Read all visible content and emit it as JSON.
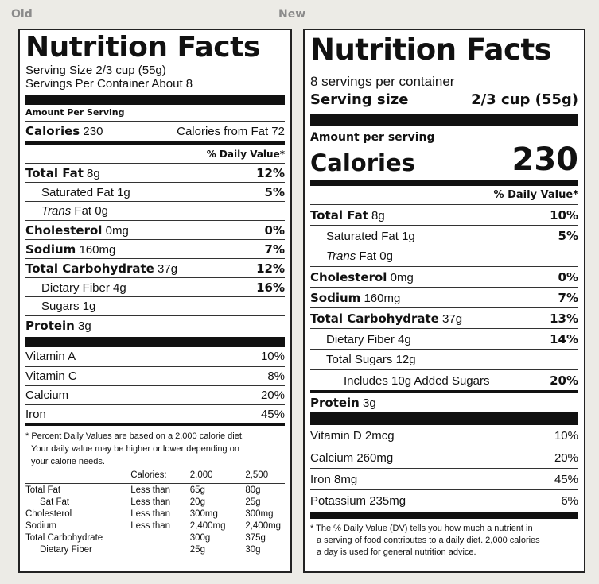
{
  "captions": {
    "old": "Old",
    "new": "New"
  },
  "old": {
    "title": "Nutrition Facts",
    "serving_size": "Serving Size 2/3 cup (55g)",
    "servings_per": "Servings Per Container About 8",
    "amount_per_serving": "Amount Per Serving",
    "calories_label": "Calories",
    "calories_value": "230",
    "calories_from_fat": "Calories from Fat 72",
    "daily_value_header": "% Daily Value*",
    "nutrients": [
      {
        "name": "Total Fat",
        "amount": "8g",
        "dv": "12%"
      },
      {
        "name": "Saturated Fat",
        "amount": "1g",
        "dv": "5%"
      },
      {
        "name": "Trans",
        "amount": "Fat 0g",
        "dv": ""
      },
      {
        "name": "Cholesterol",
        "amount": "0mg",
        "dv": "0%"
      },
      {
        "name": "Sodium",
        "amount": "160mg",
        "dv": "7%"
      },
      {
        "name": "Total Carbohydrate",
        "amount": "37g",
        "dv": "12%"
      },
      {
        "name": "Dietary Fiber",
        "amount": "4g",
        "dv": "16%"
      },
      {
        "name": "Sugars",
        "amount": "1g",
        "dv": ""
      },
      {
        "name": "Protein",
        "amount": "3g",
        "dv": ""
      }
    ],
    "vitamins": [
      {
        "name": "Vitamin A",
        "dv": "10%"
      },
      {
        "name": "Vitamin C",
        "dv": "8%"
      },
      {
        "name": "Calcium",
        "dv": "20%"
      },
      {
        "name": "Iron",
        "dv": "45%"
      }
    ],
    "footnote": [
      "* Percent Daily Values are based on a 2,000 calorie diet.",
      "Your daily value may be higher or lower depending on",
      "your calorie needs."
    ],
    "dv_table": {
      "header": [
        "",
        "Calories:",
        "2,000",
        "2,500"
      ],
      "rows": [
        [
          "Total Fat",
          "Less than",
          "65g",
          "80g"
        ],
        [
          "Sat Fat",
          "Less than",
          "20g",
          "25g"
        ],
        [
          "Cholesterol",
          "Less than",
          "300mg",
          "300mg"
        ],
        [
          "Sodium",
          "Less than",
          "2,400mg",
          "2,400mg"
        ],
        [
          "Total Carbohydrate",
          "",
          "300g",
          "375g"
        ],
        [
          "Dietary Fiber",
          "",
          "25g",
          "30g"
        ]
      ]
    }
  },
  "new": {
    "title": "Nutrition Facts",
    "servings_per": "8 servings per container",
    "serving_size_label": "Serving size",
    "serving_size_value": "2/3 cup (55g)",
    "amount_per_serving": "Amount per serving",
    "calories_label": "Calories",
    "calories_value": "230",
    "daily_value_header": "% Daily Value*",
    "nutrients": [
      {
        "name": "Total Fat",
        "amount": "8g",
        "dv": "10%"
      },
      {
        "name": "Saturated Fat",
        "amount": "1g",
        "dv": "5%"
      },
      {
        "name": "Trans",
        "amount": "Fat 0g",
        "dv": ""
      },
      {
        "name": "Cholesterol",
        "amount": "0mg",
        "dv": "0%"
      },
      {
        "name": "Sodium",
        "amount": "160mg",
        "dv": "7%"
      },
      {
        "name": "Total Carbohydrate",
        "amount": "37g",
        "dv": "13%"
      },
      {
        "name": "Dietary Fiber",
        "amount": "4g",
        "dv": "14%"
      },
      {
        "name": "Total Sugars",
        "amount": "12g",
        "dv": ""
      },
      {
        "name": "Includes 10g Added Sugars",
        "amount": "",
        "dv": "20%"
      },
      {
        "name": "Protein",
        "amount": "3g",
        "dv": ""
      }
    ],
    "vitamins": [
      {
        "name": "Vitamin D 2mcg",
        "dv": "10%"
      },
      {
        "name": "Calcium 260mg",
        "dv": "20%"
      },
      {
        "name": "Iron 8mg",
        "dv": "45%"
      },
      {
        "name": "Potassium 235mg",
        "dv": "6%"
      }
    ],
    "footnote": [
      "* The % Daily Value (DV) tells you how much a nutrient in",
      "a serving of food contributes to a daily diet. 2,000 calories",
      "a day is used for general nutrition advice."
    ]
  }
}
